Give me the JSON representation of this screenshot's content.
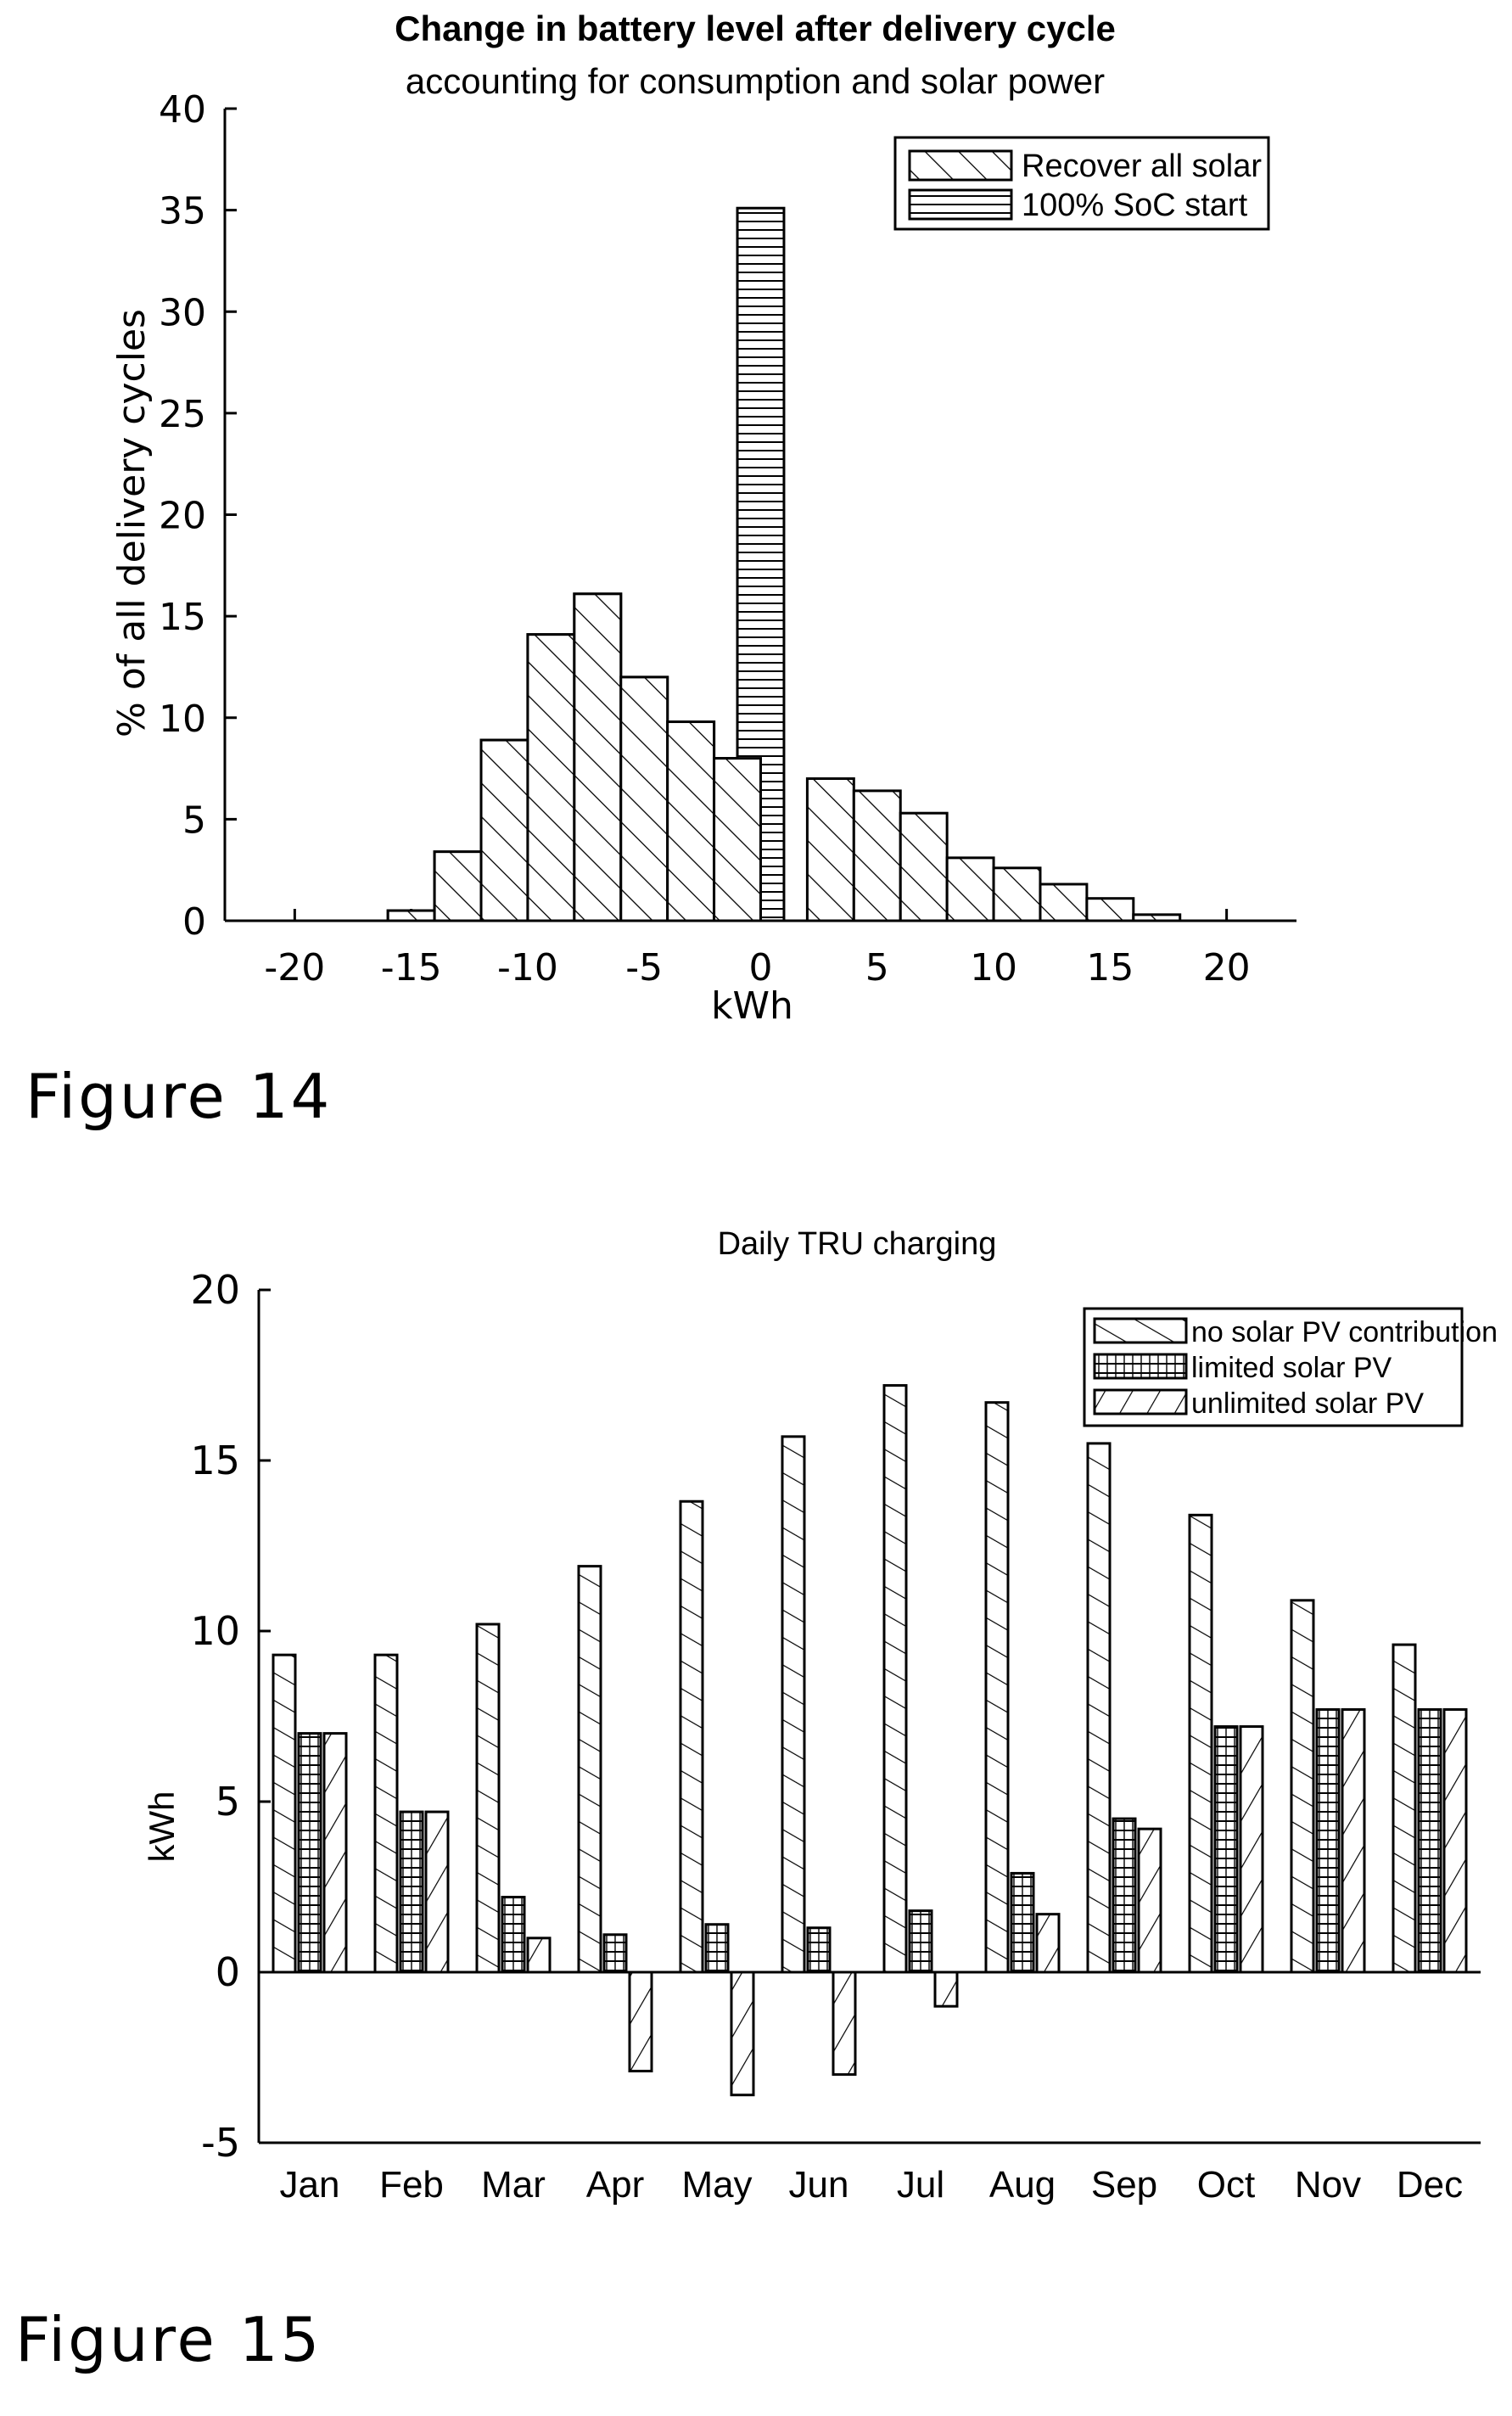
{
  "figures": [
    {
      "label": "Figure 14"
    },
    {
      "label": "Figure 15"
    }
  ],
  "chart_data": [
    {
      "type": "bar",
      "title": "Change in battery level after delivery cycle",
      "subtitle": "accounting for consumption and solar power",
      "xlabel": "kWh",
      "ylabel": "% of all delivery cycles",
      "xlim": [
        -23,
        23
      ],
      "ylim": [
        0,
        40
      ],
      "xticks": [
        -20,
        -15,
        -10,
        -5,
        0,
        5,
        10,
        15,
        20
      ],
      "yticks": [
        0,
        5,
        10,
        15,
        20,
        25,
        30,
        35,
        40
      ],
      "bin_width": 2,
      "bin_centers": [
        -15,
        -13,
        -11,
        -9,
        -7,
        -5,
        -3,
        -1,
        0,
        1,
        3,
        5,
        7,
        9,
        11,
        13,
        15,
        17
      ],
      "legend_position": "top-right",
      "series": [
        {
          "name": "Recover all solar",
          "hatch": "diagonal",
          "values": [
            0.5,
            3.4,
            8.9,
            14.1,
            16.1,
            12.0,
            9.8,
            8.0,
            null,
            null,
            7.0,
            6.4,
            5.3,
            3.1,
            2.6,
            1.8,
            1.1,
            0.3
          ]
        },
        {
          "name": "100% SoC start",
          "hatch": "horizontal",
          "values": [
            0.5,
            3.4,
            8.9,
            14.1,
            16.1,
            12.0,
            9.8,
            8.0,
            35.1,
            null,
            null,
            null,
            null,
            null,
            null,
            null,
            null,
            null
          ]
        }
      ]
    },
    {
      "type": "bar",
      "title": "Daily TRU charging",
      "xlabel": "",
      "ylabel": "kWh",
      "ylim": [
        -5,
        20
      ],
      "yticks": [
        -5,
        0,
        5,
        10,
        15,
        20
      ],
      "categories": [
        "Jan",
        "Feb",
        "Mar",
        "Apr",
        "May",
        "Jun",
        "Jul",
        "Aug",
        "Sep",
        "Oct",
        "Nov",
        "Dec"
      ],
      "legend_position": "top-right",
      "series": [
        {
          "name": "no solar PV contribution",
          "hatch": "diagonal",
          "values": [
            9.3,
            9.3,
            10.2,
            11.9,
            13.8,
            15.7,
            17.2,
            16.7,
            15.5,
            13.4,
            10.9,
            9.6
          ]
        },
        {
          "name": "limited solar PV",
          "hatch": "horizontal",
          "values": [
            7.0,
            4.7,
            2.2,
            1.1,
            1.4,
            1.3,
            1.8,
            2.9,
            4.5,
            7.2,
            7.7,
            7.7
          ]
        },
        {
          "name": "unlimited solar PV",
          "hatch": "diagonal-reverse",
          "values": [
            7.0,
            4.7,
            1.0,
            -2.9,
            -3.6,
            -3.0,
            -1.0,
            1.7,
            4.2,
            7.2,
            7.7,
            7.7
          ]
        }
      ]
    }
  ]
}
